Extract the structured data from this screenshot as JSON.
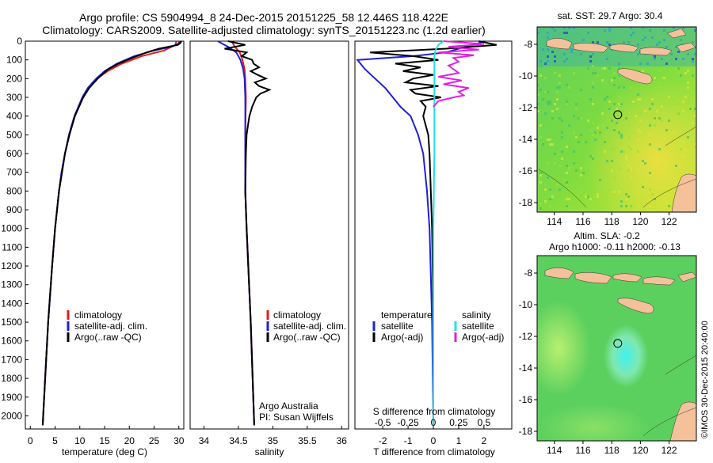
{
  "header": {
    "line1": "Argo profile: CS 5904994_8 24-Dec-2015 20151225_58 12.446S 118.422E",
    "line2": "Climatology: CARS2009. Satellite-adjusted climatology: synTS_20151223.nc (1.2d earlier)"
  },
  "credit": "©IMOS 30-Dec-2015 20:40:00",
  "colors": {
    "climatology": "#e41a1c",
    "satellite": "#1f1fd6",
    "argo": "#000000",
    "argo_salinity": "#e020e0",
    "satellite_salinity": "#22e0e0"
  },
  "chart_data": [
    {
      "type": "line",
      "xlabel": "temperature (deg C)",
      "ylabel": "",
      "xlim": [
        -1,
        31
      ],
      "ylim": [
        0,
        2070
      ],
      "y_reversed": true,
      "x_ticks": [
        "0",
        "5",
        "10",
        "15",
        "20",
        "25",
        "30"
      ],
      "y_ticks": [
        "0",
        "100",
        "200",
        "300",
        "400",
        "500",
        "600",
        "700",
        "800",
        "900",
        "1000",
        "1100",
        "1200",
        "1300",
        "1400",
        "1500",
        "1600",
        "1700",
        "1800",
        "1900",
        "2000"
      ],
      "legend": [
        "climatology",
        "satellite-adj. clim.",
        "Argo(..raw -QC)"
      ],
      "series": [
        {
          "name": "climatology",
          "depth": [
            0,
            20,
            50,
            80,
            120,
            160,
            200,
            250,
            300,
            400,
            500,
            600,
            700,
            800,
            1000,
            1200,
            1500,
            1800,
            2050
          ],
          "values": [
            29.5,
            29.3,
            27,
            22.5,
            18.5,
            15.6,
            13.5,
            11.8,
            10.6,
            9,
            7.9,
            7,
            6.4,
            5.8,
            5,
            4.4,
            3.6,
            3,
            2.5
          ]
        },
        {
          "name": "satellite-adj. clim.",
          "depth": [
            0,
            15,
            30,
            50,
            80,
            120,
            160,
            200,
            250,
            300,
            400,
            500,
            600,
            700,
            800,
            1000,
            1200,
            1500,
            1800,
            2050
          ],
          "values": [
            30.2,
            29.8,
            28.5,
            25,
            21,
            17.5,
            15,
            13.3,
            11.6,
            10.5,
            8.9,
            7.8,
            7,
            6.3,
            5.8,
            5,
            4.4,
            3.6,
            3,
            2.5
          ]
        },
        {
          "name": "Argo(..raw -QC)",
          "depth": [
            0,
            10,
            20,
            40,
            60,
            90,
            120,
            150,
            200,
            250,
            300,
            400,
            500,
            600,
            700,
            800,
            1000,
            1200,
            1500,
            1800,
            2050
          ],
          "values": [
            30.5,
            30.3,
            29.8,
            26,
            23.5,
            20.5,
            17.8,
            15.7,
            13.6,
            11.9,
            10.7,
            9,
            7.9,
            7,
            6.4,
            5.8,
            5,
            4.4,
            3.6,
            3,
            2.5
          ]
        }
      ]
    },
    {
      "type": "line",
      "xlabel": "salinity",
      "xlim": [
        33.8,
        36.1
      ],
      "ylim": [
        0,
        2070
      ],
      "y_reversed": true,
      "x_ticks": [
        "34",
        "34.5",
        "35",
        "35.5",
        "36"
      ],
      "legend": [
        "climatology",
        "satellite-adj. clim.",
        "Argo(..raw -QC)"
      ],
      "annotation": [
        "Argo Australia",
        "PI: Susan Wijffels"
      ],
      "series": [
        {
          "name": "climatology",
          "depth": [
            0,
            30,
            60,
            100,
            150,
            200,
            300,
            500,
            800,
            1000,
            1500,
            2050
          ],
          "values": [
            34.4,
            34.45,
            34.52,
            34.56,
            34.59,
            34.6,
            34.61,
            34.6,
            34.6,
            34.62,
            34.68,
            34.73
          ]
        },
        {
          "name": "satellite-adj. clim.",
          "depth": [
            0,
            30,
            60,
            100,
            150,
            200,
            300,
            500,
            800,
            1000,
            1500,
            2050
          ],
          "values": [
            34.2,
            34.35,
            34.47,
            34.53,
            34.57,
            34.59,
            34.6,
            34.6,
            34.6,
            34.62,
            34.68,
            34.73
          ]
        },
        {
          "name": "Argo(..raw -QC)",
          "depth": [
            0,
            20,
            40,
            60,
            80,
            100,
            120,
            140,
            160,
            180,
            200,
            220,
            240,
            260,
            280,
            300,
            350,
            400,
            450,
            500,
            600,
            800,
            1000,
            1500,
            2050
          ],
          "values": [
            34.35,
            34.6,
            34.3,
            34.62,
            34.55,
            34.7,
            34.72,
            34.8,
            34.68,
            34.78,
            34.9,
            34.74,
            34.8,
            34.95,
            34.82,
            34.76,
            34.7,
            34.66,
            34.64,
            34.62,
            34.61,
            34.6,
            34.62,
            34.68,
            34.73
          ]
        }
      ]
    },
    {
      "type": "line",
      "xlabel": "T difference from climatology",
      "x_ticks": [
        "-2",
        "-1",
        "0",
        "1",
        "2"
      ],
      "xlim": [
        -3.1,
        3.1
      ],
      "top_xlabel": "S difference from climatology",
      "top_ticks": [
        "-0.5",
        "-0.25",
        "0",
        "0.25",
        "0.5"
      ],
      "ylim": [
        0,
        2070
      ],
      "y_reversed": true,
      "legend_left_title": "temperature",
      "legend_right_title": "salinity",
      "legend": [
        "satellite",
        "Argo(-adj)",
        "satellite",
        "Argo(-adj)"
      ],
      "series": [
        {
          "name": "satellite",
          "quantity": "temperature",
          "depth": [
            0,
            20,
            40,
            60,
            80,
            100,
            150,
            200,
            250,
            300,
            350,
            400,
            500,
            600,
            800,
            1000,
            1500,
            2050
          ],
          "values": [
            2.0,
            1.6,
            1.0,
            0.5,
            -0.8,
            -3.0,
            -2.7,
            -2.3,
            -1.9,
            -1.6,
            -1.3,
            -0.9,
            -0.6,
            -0.4,
            -0.25,
            -0.15,
            -0.05,
            0
          ]
        },
        {
          "name": "Argo(-adj)",
          "quantity": "temperature",
          "depth": [
            0,
            20,
            40,
            60,
            80,
            100,
            120,
            140,
            160,
            180,
            200,
            220,
            240,
            260,
            280,
            300,
            320,
            350,
            400,
            450,
            500,
            600,
            800,
            1000,
            1500,
            2050
          ],
          "values": [
            1.8,
            2.5,
            0.5,
            -2.5,
            -0.8,
            0.2,
            -1.5,
            -0.5,
            -1.2,
            0.0,
            -0.8,
            -1.1,
            0.2,
            -0.9,
            -0.7,
            0.3,
            -0.5,
            -0.3,
            -0.4,
            -0.3,
            -0.2,
            -0.15,
            -0.1,
            -0.05,
            0,
            0
          ]
        },
        {
          "name": "satellite",
          "quantity": "salinity",
          "depth": [
            0,
            20,
            50,
            80,
            100,
            150,
            200,
            300,
            400,
            600,
            1000,
            1500,
            2050
          ],
          "values": [
            0.1,
            0.05,
            0.02,
            0.01,
            0.01,
            0.01,
            0.01,
            0.01,
            0.01,
            0.01,
            0,
            0,
            0
          ]
        },
        {
          "name": "Argo(-adj)",
          "quantity": "salinity",
          "depth": [
            0,
            15,
            30,
            45,
            60,
            75,
            90,
            110,
            130,
            150,
            170,
            190,
            210,
            230,
            250,
            270,
            290,
            300,
            320,
            350
          ],
          "values": [
            0.1,
            0.5,
            0.15,
            0.45,
            0.05,
            0.4,
            0.2,
            0.25,
            0.15,
            0.2,
            0.25,
            0.05,
            0.28,
            0.1,
            0.35,
            0.25,
            0.3,
            0.2,
            0.05,
            0.0
          ]
        }
      ]
    },
    {
      "type": "heatmap",
      "title": "sat. SST: 29.7 Argo: 30.4",
      "x_ticks": [
        "114",
        "116",
        "118",
        "120",
        "122"
      ],
      "y_ticks": [
        "-8",
        "-10",
        "-12",
        "-14",
        "-16",
        "-18"
      ],
      "xlim": [
        112.8,
        123.9
      ],
      "ylim": [
        -18.6,
        -6.9
      ],
      "marker": {
        "lon": 118.422,
        "lat": -12.446
      }
    },
    {
      "type": "heatmap",
      "title": "Altim. SLA: -0.2",
      "subtitle": "Argo h1000: -0.11 h2000: -0.13",
      "x_ticks": [
        "114",
        "116",
        "118",
        "120",
        "122"
      ],
      "y_ticks": [
        "-8",
        "-10",
        "-12",
        "-14",
        "-16",
        "-18"
      ],
      "xlim": [
        112.8,
        123.9
      ],
      "ylim": [
        -18.6,
        -6.9
      ],
      "marker": {
        "lon": 118.422,
        "lat": -12.446
      }
    }
  ]
}
